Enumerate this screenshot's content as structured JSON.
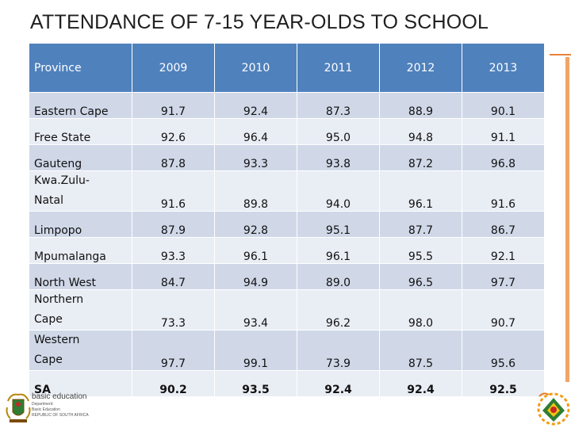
{
  "title": "ATTENDANCE OF 7-15 YEAR-OLDS TO SCHOOL",
  "table": {
    "headers": [
      "Province",
      "2009",
      "2010",
      "2011",
      "2012",
      "2013"
    ],
    "rows": [
      {
        "province": "Eastern Cape",
        "values": [
          "91.7",
          "92.4",
          "87.3",
          "88.9",
          "90.1"
        ]
      },
      {
        "province": "Free State",
        "values": [
          "92.6",
          "96.4",
          "95.0",
          "94.8",
          "91.1"
        ]
      },
      {
        "province": "Gauteng",
        "values": [
          "87.8",
          "93.3",
          "93.8",
          "87.2",
          "96.8"
        ]
      },
      {
        "province_lines": [
          "Kwa.Zulu-",
          "Natal"
        ],
        "values": [
          "91.6",
          "89.8",
          "94.0",
          "96.1",
          "91.6"
        ]
      },
      {
        "province": "Limpopo",
        "values": [
          "87.9",
          "92.8",
          "95.1",
          "87.7",
          "86.7"
        ]
      },
      {
        "province": "Mpumalanga",
        "values": [
          "93.3",
          "96.1",
          "96.1",
          "95.5",
          "92.1"
        ]
      },
      {
        "province": "North West",
        "values": [
          "84.7",
          "94.9",
          "89.0",
          "96.5",
          "97.7"
        ]
      },
      {
        "province_lines": [
          "Northern",
          "Cape"
        ],
        "values": [
          "73.3",
          "93.4",
          "96.2",
          "98.0",
          "90.7"
        ]
      },
      {
        "province_lines": [
          "Western",
          "Cape"
        ],
        "values": [
          "97.7",
          "99.1",
          "73.9",
          "87.5",
          "95.6"
        ]
      },
      {
        "province": "SA",
        "values": [
          "90.2",
          "93.5",
          "92.4",
          "92.4",
          "92.5"
        ]
      }
    ]
  },
  "footer": {
    "logo_main": "basic education",
    "logo_lines": [
      "Department:",
      "Basic Education",
      "REPUBLIC OF SOUTH AFRICA"
    ]
  },
  "colors": {
    "header_bg": "#4f81bd",
    "row_odd": "#d0d8e8",
    "row_even": "#e9edf4",
    "accent": "#f0a468"
  }
}
